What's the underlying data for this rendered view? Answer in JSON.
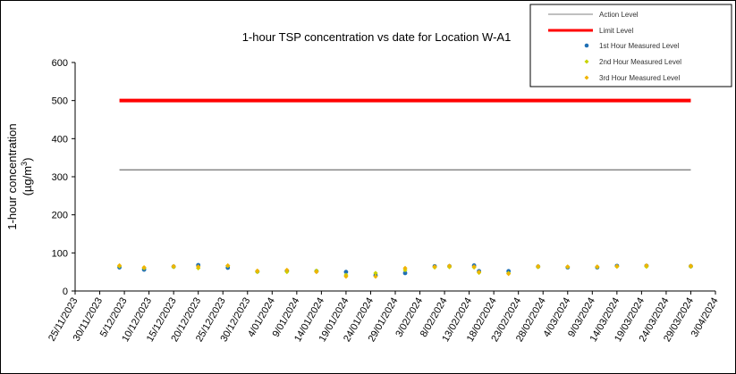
{
  "chart_data": {
    "type": "scatter",
    "title": "1-hour TSP concentration vs date for Location W-A1",
    "ylabel_line1": "1-hour concentration",
    "ylabel_line2_prefix": "(µg/m",
    "ylabel_line2_sup": "3",
    "ylabel_line2_suffix": ")",
    "ylim": [
      0,
      600
    ],
    "yticks": [
      0,
      100,
      200,
      300,
      400,
      500,
      600
    ],
    "xlim": [
      "2023-11-25",
      "2024-04-03"
    ],
    "xtick_labels": [
      "25/11/2023",
      "30/11/2023",
      "5/12/2023",
      "10/12/2023",
      "15/12/2023",
      "20/12/2023",
      "25/12/2023",
      "30/12/2023",
      "4/01/2024",
      "9/01/2024",
      "14/01/2024",
      "19/01/2024",
      "24/01/2024",
      "29/01/2024",
      "3/02/2024",
      "8/02/2024",
      "13/02/2024",
      "18/02/2024",
      "23/02/2024",
      "28/02/2024",
      "4/03/2024",
      "9/03/2024",
      "14/03/2024",
      "19/03/2024",
      "24/03/2024",
      "29/03/2024",
      "3/04/2024"
    ],
    "legend_position": "top-right",
    "grid": false,
    "action_level": {
      "name": "Action Level",
      "value": 318,
      "x": [
        "2023-12-04",
        "2024-03-29"
      ],
      "color": "#808080"
    },
    "limit_level": {
      "name": "Limit Level",
      "value": 500,
      "x": [
        "2023-12-04",
        "2024-03-29"
      ],
      "color": "#ff0000"
    },
    "series": [
      {
        "name": "1st Hour Measured Level",
        "color": "#1f6fb4",
        "points": [
          [
            "2023-12-04",
            62
          ],
          [
            "2023-12-09",
            56
          ],
          [
            "2023-12-15",
            64
          ],
          [
            "2023-12-20",
            68
          ],
          [
            "2023-12-26",
            61
          ],
          [
            "2024-01-01",
            51
          ],
          [
            "2024-01-07",
            53
          ],
          [
            "2024-01-13",
            52
          ],
          [
            "2024-01-19",
            50
          ],
          [
            "2024-01-25",
            41
          ],
          [
            "2024-01-31",
            47
          ],
          [
            "2024-02-06",
            65
          ],
          [
            "2024-02-09",
            65
          ],
          [
            "2024-02-14",
            67
          ],
          [
            "2024-02-15",
            52
          ],
          [
            "2024-02-21",
            52
          ],
          [
            "2024-02-27",
            64
          ],
          [
            "2024-03-04",
            62
          ],
          [
            "2024-03-10",
            62
          ],
          [
            "2024-03-14",
            66
          ],
          [
            "2024-03-20",
            66
          ],
          [
            "2024-03-29",
            65
          ]
        ]
      },
      {
        "name": "2nd Hour Measured Level",
        "color": "#c8d400",
        "points": [
          [
            "2023-12-04",
            65
          ],
          [
            "2023-12-09",
            60
          ],
          [
            "2023-12-15",
            63
          ],
          [
            "2023-12-20",
            60
          ],
          [
            "2023-12-26",
            66
          ],
          [
            "2024-01-01",
            50
          ],
          [
            "2024-01-07",
            50
          ],
          [
            "2024-01-13",
            53
          ],
          [
            "2024-01-19",
            42
          ],
          [
            "2024-01-25",
            47
          ],
          [
            "2024-01-31",
            55
          ],
          [
            "2024-02-06",
            62
          ],
          [
            "2024-02-09",
            63
          ],
          [
            "2024-02-14",
            62
          ],
          [
            "2024-02-15",
            48
          ],
          [
            "2024-02-21",
            47
          ],
          [
            "2024-02-27",
            63
          ],
          [
            "2024-03-04",
            63
          ],
          [
            "2024-03-10",
            63
          ],
          [
            "2024-03-14",
            64
          ],
          [
            "2024-03-20",
            64
          ],
          [
            "2024-03-29",
            64
          ]
        ]
      },
      {
        "name": "3rd Hour Measured Level",
        "color": "#f0b400",
        "points": [
          [
            "2023-12-04",
            67
          ],
          [
            "2023-12-09",
            62
          ],
          [
            "2023-12-15",
            65
          ],
          [
            "2023-12-20",
            64
          ],
          [
            "2023-12-26",
            67
          ],
          [
            "2024-01-01",
            53
          ],
          [
            "2024-01-07",
            55
          ],
          [
            "2024-01-13",
            50
          ],
          [
            "2024-01-19",
            38
          ],
          [
            "2024-01-25",
            38
          ],
          [
            "2024-01-31",
            60
          ],
          [
            "2024-02-06",
            64
          ],
          [
            "2024-02-09",
            66
          ],
          [
            "2024-02-14",
            64
          ],
          [
            "2024-02-15",
            50
          ],
          [
            "2024-02-21",
            45
          ],
          [
            "2024-02-27",
            65
          ],
          [
            "2024-03-04",
            64
          ],
          [
            "2024-03-10",
            64
          ],
          [
            "2024-03-14",
            65
          ],
          [
            "2024-03-20",
            67
          ],
          [
            "2024-03-29",
            66
          ]
        ]
      }
    ]
  }
}
